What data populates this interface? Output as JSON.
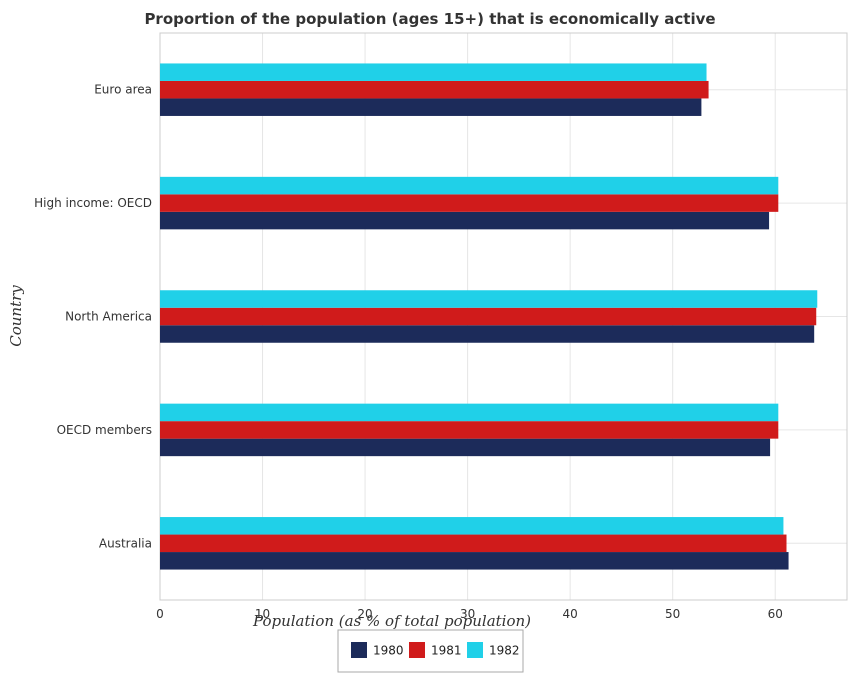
{
  "chart_data": {
    "type": "bar",
    "orientation": "horizontal",
    "title": "Proportion of the population (ages 15+) that is economically active",
    "xlabel": "Population (as % of total population)",
    "ylabel": "Country",
    "categories": [
      "Euro area",
      "High income: OECD",
      "North America",
      "OECD members",
      "Australia"
    ],
    "series": [
      {
        "name": "1980",
        "color": "#1c2b5a",
        "values": [
          52.8,
          59.4,
          63.8,
          59.5,
          61.3
        ]
      },
      {
        "name": "1981",
        "color": "#d01b1b",
        "values": [
          53.5,
          60.3,
          64.0,
          60.3,
          61.1
        ]
      },
      {
        "name": "1982",
        "color": "#20d0e8",
        "values": [
          53.3,
          60.3,
          64.1,
          60.3,
          60.8
        ]
      }
    ],
    "xlim": [
      0,
      67
    ],
    "xticks": [
      0,
      10,
      20,
      30,
      40,
      50,
      60
    ],
    "grid": true,
    "legend_position": "bottom-center"
  }
}
